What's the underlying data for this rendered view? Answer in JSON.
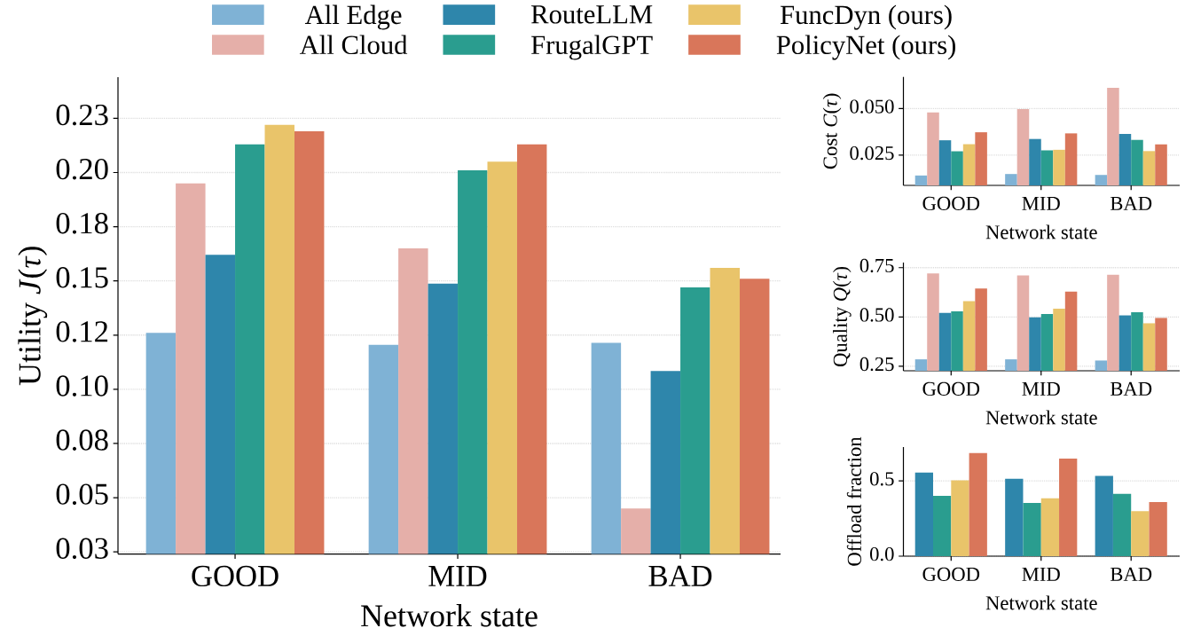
{
  "chart_data": [
    {
      "type": "bar",
      "xlabel": "Network state",
      "ylabel": "Utility *J*(*τ*)",
      "categories": [
        "GOOD",
        "MID",
        "BAD"
      ],
      "series": [
        {
          "name": "All Edge",
          "color": "#7fb2d5",
          "values": [
            0.126,
            0.1205,
            0.1214
          ]
        },
        {
          "name": "All Cloud",
          "color": "#e5afa9",
          "values": [
            0.195,
            0.165,
            0.045
          ]
        },
        {
          "name": "RouteLLM",
          "color": "#2e86ab",
          "values": [
            0.162,
            0.1487,
            0.1084
          ]
        },
        {
          "name": "FrugalGPT",
          "color": "#2a9d8f",
          "values": [
            0.213,
            0.201,
            0.147
          ]
        },
        {
          "name": "FuncDyn (ours)",
          "color": "#e9c46a",
          "values": [
            0.222,
            0.205,
            0.156
          ]
        },
        {
          "name": "PolicyNet (ours)",
          "color": "#d9765a",
          "values": [
            0.219,
            0.213,
            0.151
          ]
        }
      ],
      "ylim": [
        0.024,
        0.244
      ],
      "yticks": [
        {
          "value": 0.025,
          "label": "0.03"
        },
        0.05,
        {
          "value": 0.075,
          "label": "0.08"
        },
        {
          "value": 0.1,
          "label": "0.10"
        },
        {
          "value": 0.125,
          "label": "0.12"
        },
        0.15,
        {
          "value": 0.175,
          "label": "0.18"
        },
        {
          "value": 0.2,
          "label": "0.20"
        },
        {
          "value": 0.225,
          "label": "0.23"
        }
      ],
      "grid": "y",
      "legend": "top"
    },
    {
      "type": "bar",
      "xlabel": "Network state",
      "ylabel": "Cost *C*(*τ*)",
      "categories": [
        "GOOD",
        "MID",
        "BAD"
      ],
      "series": [
        {
          "color": "#7fb2d5",
          "values": [
            0.0141,
            0.0149,
            0.0144
          ]
        },
        {
          "color": "#e5afa9",
          "values": [
            0.0479,
            0.0497,
            0.0611
          ]
        },
        {
          "color": "#2e86ab",
          "values": [
            0.033,
            0.0337,
            0.0364
          ]
        },
        {
          "color": "#2a9d8f",
          "values": [
            0.0271,
            0.0276,
            0.0332
          ]
        },
        {
          "color": "#e9c46a",
          "values": [
            0.0309,
            0.0279,
            0.0272
          ]
        },
        {
          "color": "#d9765a",
          "values": [
            0.0373,
            0.0367,
            0.0308
          ]
        }
      ],
      "ylim": [
        0.0088,
        0.067
      ],
      "yticks": [
        0.025,
        {
          "value": 0.05,
          "label": "0.050"
        }
      ],
      "grid": "y"
    },
    {
      "type": "bar",
      "xlabel": "Network state",
      "ylabel": "Quality *Q*(*τ*)",
      "categories": [
        "GOOD",
        "MID",
        "BAD"
      ],
      "series": [
        {
          "color": "#7fb2d5",
          "values": [
            0.285,
            0.285,
            0.279
          ]
        },
        {
          "color": "#e5afa9",
          "values": [
            0.721,
            0.711,
            0.714
          ]
        },
        {
          "color": "#2e86ab",
          "values": [
            0.521,
            0.498,
            0.508
          ]
        },
        {
          "color": "#2a9d8f",
          "values": [
            0.529,
            0.515,
            0.524
          ]
        },
        {
          "color": "#e9c46a",
          "values": [
            0.58,
            0.542,
            0.468
          ]
        },
        {
          "color": "#d9765a",
          "values": [
            0.644,
            0.629,
            0.495
          ]
        }
      ],
      "ylim": [
        0.227,
        0.776
      ],
      "yticks": [
        0.25,
        {
          "value": 0.5,
          "label": "0.50"
        },
        0.75
      ],
      "grid": "y"
    },
    {
      "type": "bar",
      "xlabel": "Network state",
      "ylabel": "Offload fraction",
      "categories": [
        "GOOD",
        "MID",
        "BAD"
      ],
      "series": [
        {
          "color": "#2e86ab",
          "values": [
            0.556,
            0.514,
            0.534
          ]
        },
        {
          "color": "#2a9d8f",
          "values": [
            0.4,
            0.353,
            0.414
          ]
        },
        {
          "color": "#e9c46a",
          "values": [
            0.504,
            0.384,
            0.299
          ]
        },
        {
          "color": "#d9765a",
          "values": [
            0.685,
            0.649,
            0.359
          ]
        }
      ],
      "ylim": [
        0,
        0.725
      ],
      "yticks": [
        {
          "value": 0,
          "label": "0.0"
        },
        0.5
      ],
      "grid": "y"
    }
  ]
}
